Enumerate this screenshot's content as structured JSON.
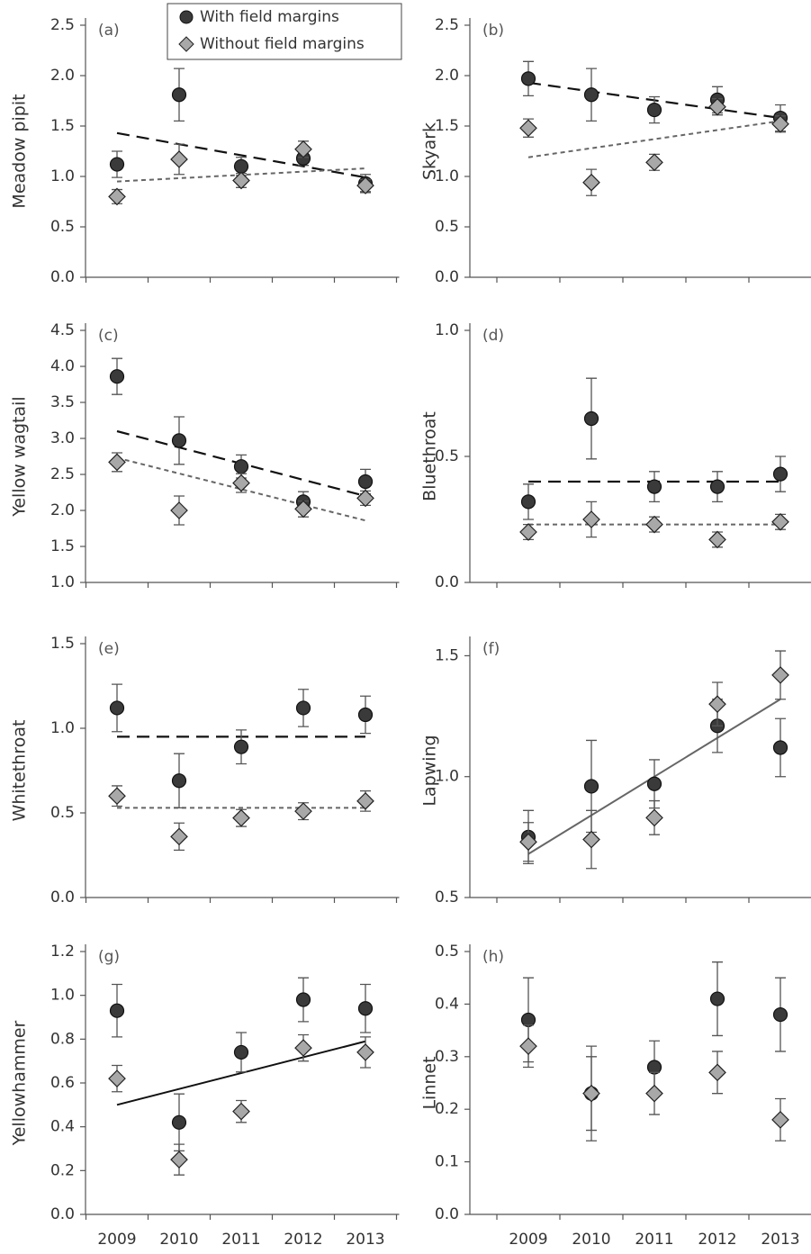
{
  "chart_data": [
    {
      "type": "scatter",
      "panel": "(a)",
      "y_label": "Meadow pipit",
      "ylim": [
        0,
        2.5
      ],
      "yticks": [
        {
          "value": 0,
          "label": "0.0"
        },
        0.5,
        {
          "value": 1,
          "label": "1.0"
        },
        1.5,
        {
          "value": 2,
          "label": "2.0"
        },
        2.5
      ],
      "series": [
        {
          "name": "With field margins",
          "color": "#3a3a3a",
          "values": [
            1.12,
            1.81,
            1.1,
            1.18,
            0.93
          ],
          "errors": [
            0.13,
            0.26,
            0.09,
            0.07,
            0.09
          ],
          "trend": [
            1.43,
            0.99
          ]
        },
        {
          "name": "Without field margins",
          "color": "#a8a8a8",
          "values": [
            0.8,
            1.17,
            0.96,
            1.27,
            0.91
          ],
          "errors": [
            0.07,
            0.15,
            0.07,
            0.08,
            0.06
          ],
          "trend": [
            0.95,
            1.08
          ]
        }
      ]
    },
    {
      "type": "scatter",
      "panel": "(b)",
      "y_label": "Skyark",
      "ylim": [
        0,
        2.5
      ],
      "yticks": [
        {
          "value": 0,
          "label": "0.0"
        },
        0.5,
        {
          "value": 1,
          "label": "1.0"
        },
        1.5,
        {
          "value": 2,
          "label": "2.0"
        },
        2.5
      ],
      "series": [
        {
          "color": "#3a3a3a",
          "values": [
            1.97,
            1.81,
            1.66,
            1.76,
            1.58
          ],
          "errors": [
            0.17,
            0.26,
            0.13,
            0.13,
            0.13
          ],
          "trend": [
            1.93,
            1.58
          ]
        },
        {
          "color": "#a8a8a8",
          "values": [
            1.48,
            0.94,
            1.14,
            1.69,
            1.52
          ],
          "errors": [
            0.09,
            0.13,
            0.08,
            0.08,
            0.08
          ],
          "trend": [
            1.19,
            1.55
          ]
        }
      ]
    },
    {
      "type": "scatter",
      "panel": "(c)",
      "y_label": "Yellow wagtail",
      "ylim": [
        1,
        4.5
      ],
      "yticks": [
        {
          "value": 1,
          "label": "1.0"
        },
        1.5,
        {
          "value": 2,
          "label": "2.0"
        },
        2.5,
        {
          "value": 3,
          "label": "3.0"
        },
        3.5,
        {
          "value": 4,
          "label": "4.0"
        },
        4.5
      ],
      "series": [
        {
          "color": "#3a3a3a",
          "values": [
            3.86,
            2.97,
            2.61,
            2.12,
            2.4
          ],
          "errors": [
            0.25,
            0.33,
            0.16,
            0.14,
            0.17
          ],
          "trend": [
            3.1,
            2.2
          ]
        },
        {
          "color": "#a8a8a8",
          "values": [
            2.67,
            2.0,
            2.38,
            2.02,
            2.17
          ],
          "errors": [
            0.13,
            0.2,
            0.13,
            0.11,
            0.1
          ],
          "trend": [
            2.73,
            1.86
          ]
        }
      ]
    },
    {
      "type": "scatter",
      "panel": "(d)",
      "y_label": "Bluethroat",
      "ylim": [
        0,
        1
      ],
      "yticks": [
        {
          "value": 0,
          "label": "0.0"
        },
        0.5,
        {
          "value": 1,
          "label": "1.0"
        }
      ],
      "series": [
        {
          "color": "#3a3a3a",
          "values": [
            0.32,
            0.65,
            0.38,
            0.38,
            0.43
          ],
          "errors": [
            0.07,
            0.16,
            0.06,
            0.06,
            0.07
          ],
          "trend": [
            0.4,
            0.4
          ]
        },
        {
          "color": "#a8a8a8",
          "values": [
            0.2,
            0.25,
            0.23,
            0.17,
            0.24
          ],
          "errors": [
            0.03,
            0.07,
            0.03,
            0.03,
            0.03
          ],
          "trend": [
            0.23,
            0.23
          ]
        }
      ]
    },
    {
      "type": "scatter",
      "panel": "(e)",
      "y_label": "Whitethroat",
      "ylim": [
        0,
        1.5
      ],
      "yticks": [
        {
          "value": 0,
          "label": "0.0"
        },
        0.5,
        {
          "value": 1,
          "label": "1.0"
        },
        1.5
      ],
      "series": [
        {
          "color": "#3a3a3a",
          "values": [
            1.12,
            0.69,
            0.89,
            1.12,
            1.08
          ],
          "errors": [
            0.14,
            0.16,
            0.1,
            0.11,
            0.11
          ],
          "trend": [
            0.95,
            0.95
          ]
        },
        {
          "color": "#a8a8a8",
          "values": [
            0.6,
            0.36,
            0.47,
            0.51,
            0.57
          ],
          "errors": [
            0.06,
            0.08,
            0.05,
            0.05,
            0.06
          ],
          "trend": [
            0.53,
            0.53
          ]
        }
      ]
    },
    {
      "type": "scatter",
      "panel": "(f)",
      "y_label": "Lapwing",
      "ylim": [
        0.5,
        1.55
      ],
      "yticks": [
        0.5,
        {
          "value": 1,
          "label": "1.0"
        },
        1.5
      ],
      "trend": [
        0.68,
        1.32
      ],
      "trend_color": "#666666",
      "series": [
        {
          "color": "#3a3a3a",
          "values": [
            0.75,
            0.96,
            0.97,
            1.21,
            1.12
          ],
          "errors": [
            0.11,
            0.19,
            0.1,
            0.11,
            0.12
          ]
        },
        {
          "color": "#a8a8a8",
          "values": [
            0.73,
            0.74,
            0.83,
            1.3,
            1.42
          ],
          "errors": [
            0.08,
            0.12,
            0.07,
            0.09,
            0.1
          ]
        }
      ]
    },
    {
      "type": "scatter",
      "panel": "(g)",
      "y_label": "Yellowhammer",
      "ylim": [
        0,
        1.2
      ],
      "yticks": [
        {
          "value": 0,
          "label": "0.0"
        },
        0.2,
        0.4,
        0.6,
        0.8,
        {
          "value": 1,
          "label": "1.0"
        },
        1.2
      ],
      "categories": [
        "2009",
        "2010",
        "2011",
        "2012",
        "2013"
      ],
      "trend": [
        0.5,
        0.79
      ],
      "trend_color": "#111111",
      "series": [
        {
          "color": "#3a3a3a",
          "values": [
            0.93,
            0.42,
            0.74,
            0.98,
            0.94
          ],
          "errors": [
            0.12,
            0.13,
            0.09,
            0.1,
            0.11
          ]
        },
        {
          "color": "#a8a8a8",
          "values": [
            0.62,
            0.25,
            0.47,
            0.76,
            0.74
          ],
          "errors": [
            0.06,
            0.07,
            0.05,
            0.06,
            0.07
          ]
        }
      ]
    },
    {
      "type": "scatter",
      "panel": "(h)",
      "y_label": "Linnet",
      "ylim": [
        0,
        0.5
      ],
      "yticks": [
        {
          "value": 0,
          "label": "0.0"
        },
        0.1,
        0.2,
        0.3,
        0.4,
        0.5
      ],
      "categories": [
        "2009",
        "2010",
        "2011",
        "2012",
        "2013"
      ],
      "series": [
        {
          "color": "#3a3a3a",
          "values": [
            0.37,
            0.23,
            0.28,
            0.41,
            0.38
          ],
          "errors": [
            0.08,
            0.07,
            0.05,
            0.07,
            0.07
          ]
        },
        {
          "color": "#a8a8a8",
          "values": [
            0.32,
            0.23,
            0.23,
            0.27,
            0.18
          ],
          "errors": [
            0.04,
            0.09,
            0.04,
            0.04,
            0.04
          ]
        }
      ]
    }
  ]
}
